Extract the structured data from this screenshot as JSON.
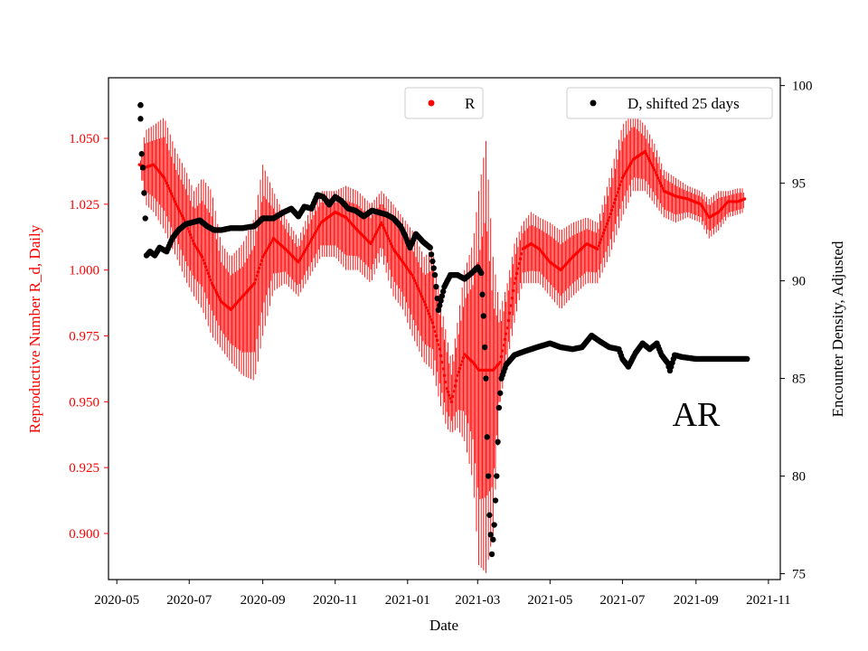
{
  "chart_data": {
    "type": "scatter",
    "annotation": "AR",
    "xlabel": "Date",
    "ylabel_left": "Reproductive Number R_d, Daily",
    "ylabel_right": "Encounter Density, Adjusted",
    "x_tick_labels": [
      "2020-05",
      "2020-07",
      "2020-09",
      "2020-11",
      "2021-01",
      "2021-03",
      "2021-05",
      "2021-07",
      "2021-09",
      "2021-11"
    ],
    "x_tick_dates": [
      "2020-05-01",
      "2020-07-01",
      "2020-09-01",
      "2020-11-01",
      "2021-01-01",
      "2021-03-01",
      "2021-05-01",
      "2021-07-01",
      "2021-09-01",
      "2021-11-01"
    ],
    "x_range": [
      "2020-04-24",
      "2021-11-11"
    ],
    "y_left_ticks": [
      "0.900",
      "0.925",
      "0.950",
      "0.975",
      "1.000",
      "1.025",
      "1.050"
    ],
    "y_left_range": [
      0.8825,
      1.073
    ],
    "y_right_ticks": [
      "75",
      "80",
      "85",
      "90",
      "95",
      "100"
    ],
    "y_right_range": [
      74.7,
      100.4
    ],
    "colors": {
      "R": "#ff0000",
      "D": "#000000",
      "left_axis": "#ff0000",
      "right_axis": "#000000"
    },
    "series": [
      {
        "name": "R",
        "axis": "left",
        "error_bars": true,
        "points": [
          [
            "2020-05-20",
            1.04,
            1.04,
            1.04
          ],
          [
            "2020-05-25",
            1.039,
            1.025,
            1.053
          ],
          [
            "2020-06-01",
            1.04,
            1.022,
            1.055
          ],
          [
            "2020-06-10",
            1.035,
            1.015,
            1.058
          ],
          [
            "2020-06-20",
            1.025,
            1.005,
            1.045
          ],
          [
            "2020-06-28",
            1.018,
            0.996,
            1.038
          ],
          [
            "2020-07-05",
            1.01,
            0.99,
            1.03
          ],
          [
            "2020-07-12",
            1.005,
            0.985,
            1.035
          ],
          [
            "2020-07-20",
            0.995,
            0.975,
            1.03
          ],
          [
            "2020-07-28",
            0.988,
            0.97,
            1.01
          ],
          [
            "2020-08-05",
            0.985,
            0.965,
            1.005
          ],
          [
            "2020-08-15",
            0.99,
            0.96,
            1.01
          ],
          [
            "2020-08-25",
            0.995,
            0.958,
            1.02
          ],
          [
            "2020-09-01",
            1.005,
            0.975,
            1.04
          ],
          [
            "2020-09-10",
            1.012,
            0.992,
            1.03
          ],
          [
            "2020-09-20",
            1.008,
            0.995,
            1.02
          ],
          [
            "2020-10-01",
            1.003,
            0.99,
            1.012
          ],
          [
            "2020-10-10",
            1.01,
            0.997,
            1.022
          ],
          [
            "2020-10-20",
            1.018,
            1.005,
            1.03
          ],
          [
            "2020-11-01",
            1.022,
            1.005,
            1.03
          ],
          [
            "2020-11-10",
            1.02,
            1.0,
            1.032
          ],
          [
            "2020-11-20",
            1.015,
            1.0,
            1.03
          ],
          [
            "2020-12-01",
            1.01,
            0.995,
            1.025
          ],
          [
            "2020-12-10",
            1.018,
            1.005,
            1.03
          ],
          [
            "2020-12-20",
            1.008,
            0.99,
            1.025
          ],
          [
            "2020-12-28",
            1.003,
            0.985,
            1.02
          ],
          [
            "2021-01-05",
            0.998,
            0.975,
            1.015
          ],
          [
            "2021-01-15",
            0.988,
            0.965,
            1.005
          ],
          [
            "2021-01-22",
            0.98,
            0.962,
            1.008
          ],
          [
            "2021-01-28",
            0.97,
            0.95,
            0.99
          ],
          [
            "2021-02-03",
            0.955,
            0.94,
            0.975
          ],
          [
            "2021-02-07",
            0.95,
            0.938,
            0.965
          ],
          [
            "2021-02-12",
            0.96,
            0.94,
            0.98
          ],
          [
            "2021-02-18",
            0.968,
            0.935,
            1.0
          ],
          [
            "2021-02-25",
            0.965,
            0.92,
            1.01
          ],
          [
            "2021-03-02",
            0.962,
            0.888,
            1.03
          ],
          [
            "2021-03-08",
            0.962,
            0.885,
            1.049
          ],
          [
            "2021-03-14",
            0.962,
            0.9,
            1.005
          ],
          [
            "2021-03-20",
            0.965,
            0.95,
            0.985
          ],
          [
            "2021-03-26",
            0.978,
            0.965,
            0.995
          ],
          [
            "2021-04-01",
            0.995,
            0.98,
            1.01
          ],
          [
            "2021-04-08",
            1.008,
            0.995,
            1.018
          ],
          [
            "2021-04-15",
            1.01,
            0.995,
            1.022
          ],
          [
            "2021-04-22",
            1.008,
            0.995,
            1.02
          ],
          [
            "2021-05-01",
            1.003,
            0.99,
            1.018
          ],
          [
            "2021-05-10",
            1.0,
            0.985,
            1.015
          ],
          [
            "2021-05-20",
            1.005,
            0.99,
            1.018
          ],
          [
            "2021-06-01",
            1.01,
            0.995,
            1.02
          ],
          [
            "2021-06-10",
            1.008,
            0.995,
            1.018
          ],
          [
            "2021-06-20",
            1.02,
            1.005,
            1.035
          ],
          [
            "2021-07-01",
            1.035,
            1.02,
            1.055
          ],
          [
            "2021-07-10",
            1.042,
            1.03,
            1.06
          ],
          [
            "2021-07-20",
            1.045,
            1.03,
            1.055
          ],
          [
            "2021-07-28",
            1.038,
            1.025,
            1.048
          ],
          [
            "2021-08-05",
            1.03,
            1.02,
            1.038
          ],
          [
            "2021-08-15",
            1.028,
            1.018,
            1.035
          ],
          [
            "2021-08-25",
            1.027,
            1.02,
            1.032
          ],
          [
            "2021-09-05",
            1.025,
            1.018,
            1.03
          ],
          [
            "2021-09-12",
            1.02,
            1.012,
            1.027
          ],
          [
            "2021-09-20",
            1.022,
            1.015,
            1.03
          ],
          [
            "2021-09-28",
            1.026,
            1.02,
            1.03
          ],
          [
            "2021-10-06",
            1.026,
            1.021,
            1.031
          ],
          [
            "2021-10-12",
            1.027,
            1.022,
            1.031
          ]
        ]
      },
      {
        "name": "D, shifted 25 days",
        "axis": "right",
        "points": [
          [
            "2020-05-21",
            99.0
          ],
          [
            "2020-05-21",
            98.3
          ],
          [
            "2020-05-22",
            96.5
          ],
          [
            "2020-05-23",
            95.8
          ],
          [
            "2020-05-24",
            94.5
          ],
          [
            "2020-05-25",
            93.2
          ],
          [
            "2020-05-26",
            91.3
          ],
          [
            "2020-05-29",
            91.5
          ],
          [
            "2020-06-02",
            91.3
          ],
          [
            "2020-06-06",
            91.7
          ],
          [
            "2020-06-12",
            91.5
          ],
          [
            "2020-06-17",
            92.2
          ],
          [
            "2020-06-22",
            92.6
          ],
          [
            "2020-06-28",
            92.9
          ],
          [
            "2020-07-04",
            93.0
          ],
          [
            "2020-07-10",
            93.1
          ],
          [
            "2020-07-16",
            92.8
          ],
          [
            "2020-07-22",
            92.6
          ],
          [
            "2020-07-28",
            92.6
          ],
          [
            "2020-08-05",
            92.7
          ],
          [
            "2020-08-15",
            92.7
          ],
          [
            "2020-08-25",
            92.8
          ],
          [
            "2020-09-01",
            93.2
          ],
          [
            "2020-09-10",
            93.2
          ],
          [
            "2020-09-18",
            93.5
          ],
          [
            "2020-09-25",
            93.7
          ],
          [
            "2020-10-01",
            93.3
          ],
          [
            "2020-10-06",
            93.8
          ],
          [
            "2020-10-12",
            93.7
          ],
          [
            "2020-10-17",
            94.4
          ],
          [
            "2020-10-22",
            94.3
          ],
          [
            "2020-10-27",
            93.9
          ],
          [
            "2020-11-01",
            94.3
          ],
          [
            "2020-11-06",
            94.1
          ],
          [
            "2020-11-12",
            93.7
          ],
          [
            "2020-11-18",
            93.6
          ],
          [
            "2020-11-25",
            93.3
          ],
          [
            "2020-12-02",
            93.6
          ],
          [
            "2020-12-08",
            93.5
          ],
          [
            "2020-12-14",
            93.4
          ],
          [
            "2020-12-20",
            93.2
          ],
          [
            "2020-12-26",
            92.8
          ],
          [
            "2020-12-30",
            92.3
          ],
          [
            "2021-01-03",
            91.7
          ],
          [
            "2021-01-08",
            92.4
          ],
          [
            "2021-01-14",
            92.0
          ],
          [
            "2021-01-20",
            91.7
          ],
          [
            "2021-01-24",
            90.3
          ],
          [
            "2021-01-27",
            88.5
          ],
          [
            "2021-02-01",
            89.7
          ],
          [
            "2021-02-06",
            90.3
          ],
          [
            "2021-02-12",
            90.3
          ],
          [
            "2021-02-18",
            90.1
          ],
          [
            "2021-02-24",
            90.4
          ],
          [
            "2021-03-01",
            90.7
          ],
          [
            "2021-03-04",
            90.4
          ],
          [
            "2021-03-06",
            88.2
          ],
          [
            "2021-03-08",
            85.0
          ],
          [
            "2021-03-09",
            82.0
          ],
          [
            "2021-03-11",
            78.0
          ],
          [
            "2021-03-13",
            76.0
          ],
          [
            "2021-03-15",
            77.5
          ],
          [
            "2021-03-17",
            80.0
          ],
          [
            "2021-03-19",
            83.5
          ],
          [
            "2021-03-21",
            85.0
          ],
          [
            "2021-03-25",
            85.7
          ],
          [
            "2021-04-01",
            86.2
          ],
          [
            "2021-04-10",
            86.4
          ],
          [
            "2021-04-20",
            86.6
          ],
          [
            "2021-05-01",
            86.8
          ],
          [
            "2021-05-10",
            86.6
          ],
          [
            "2021-05-20",
            86.5
          ],
          [
            "2021-05-28",
            86.6
          ],
          [
            "2021-06-05",
            87.2
          ],
          [
            "2021-06-12",
            86.9
          ],
          [
            "2021-06-20",
            86.6
          ],
          [
            "2021-06-28",
            86.5
          ],
          [
            "2021-07-01",
            86.0
          ],
          [
            "2021-07-06",
            85.6
          ],
          [
            "2021-07-12",
            86.3
          ],
          [
            "2021-07-18",
            86.8
          ],
          [
            "2021-07-24",
            86.5
          ],
          [
            "2021-07-30",
            86.8
          ],
          [
            "2021-08-03",
            86.2
          ],
          [
            "2021-08-08",
            85.8
          ],
          [
            "2021-08-10",
            85.4
          ],
          [
            "2021-08-14",
            86.2
          ],
          [
            "2021-08-20",
            86.1
          ],
          [
            "2021-09-01",
            86.0
          ],
          [
            "2021-09-15",
            86.0
          ],
          [
            "2021-10-01",
            86.0
          ],
          [
            "2021-10-14",
            86.0
          ]
        ]
      }
    ],
    "legends": [
      {
        "label": "R",
        "placement": "top-center"
      },
      {
        "label": "D, shifted 25 days",
        "placement": "top-right"
      }
    ]
  }
}
